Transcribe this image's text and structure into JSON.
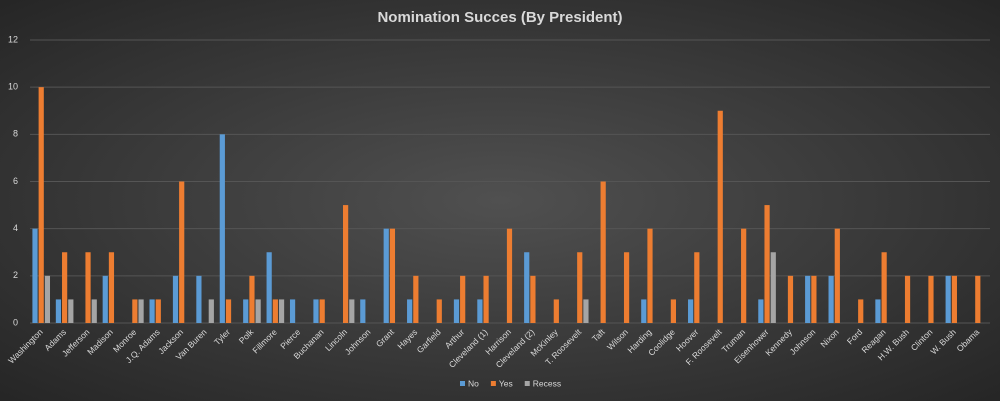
{
  "chart_data": {
    "type": "bar",
    "title": "Nomination  Succes  (By President)",
    "categories": [
      "Washington",
      "Adams",
      "Jefferson",
      "Madison",
      "Monroe",
      "J.Q. Adams",
      "Jackson",
      "Van Buren",
      "Tyler",
      "Polk",
      "Fillmore",
      "Pierce",
      "Buchanan",
      "Lincoln",
      "Johnson",
      "Grant",
      "Hayes",
      "Garfield",
      "Arthur",
      "Cleveland (1)",
      "Harrison",
      "Cleveland (2)",
      "McKinley",
      "T. Roosevelt",
      "Taft",
      "Wilson",
      "Harding",
      "Coolidge",
      "Hoover",
      "F. Roosevelt",
      "Truman",
      "Eisenhower",
      "Kennedy",
      "Johnson",
      "Nixon",
      "Ford",
      "Reagan",
      "H.W. Bush",
      "Clinton",
      "W. Bush",
      "Obama"
    ],
    "series": [
      {
        "name": "No",
        "color": "#5b9bd5",
        "values": [
          4,
          1,
          0,
          2,
          0,
          1,
          2,
          2,
          8,
          1,
          3,
          1,
          1,
          0,
          1,
          4,
          1,
          0,
          1,
          1,
          0,
          3,
          0,
          0,
          0,
          0,
          1,
          0,
          1,
          0,
          0,
          1,
          0,
          2,
          2,
          0,
          1,
          0,
          0,
          2,
          0
        ]
      },
      {
        "name": "Yes",
        "color": "#ed7d31",
        "values": [
          10,
          3,
          3,
          3,
          1,
          1,
          6,
          0,
          1,
          2,
          1,
          0,
          1,
          5,
          0,
          4,
          2,
          1,
          2,
          2,
          4,
          2,
          1,
          3,
          6,
          3,
          4,
          1,
          3,
          9,
          4,
          5,
          2,
          2,
          4,
          1,
          3,
          2,
          2,
          2,
          2
        ]
      },
      {
        "name": "Recess",
        "color": "#a5a5a5",
        "values": [
          2,
          1,
          1,
          0,
          1,
          0,
          0,
          1,
          0,
          1,
          1,
          0,
          0,
          1,
          0,
          0,
          0,
          0,
          0,
          0,
          0,
          0,
          0,
          1,
          0,
          0,
          0,
          0,
          0,
          0,
          0,
          3,
          0,
          0,
          0,
          0,
          0,
          0,
          0,
          0,
          0
        ]
      }
    ],
    "ylim": [
      0,
      12
    ],
    "yticks": [
      0,
      2,
      4,
      6,
      8,
      10,
      12
    ],
    "grid": true,
    "legend": "bottom"
  }
}
